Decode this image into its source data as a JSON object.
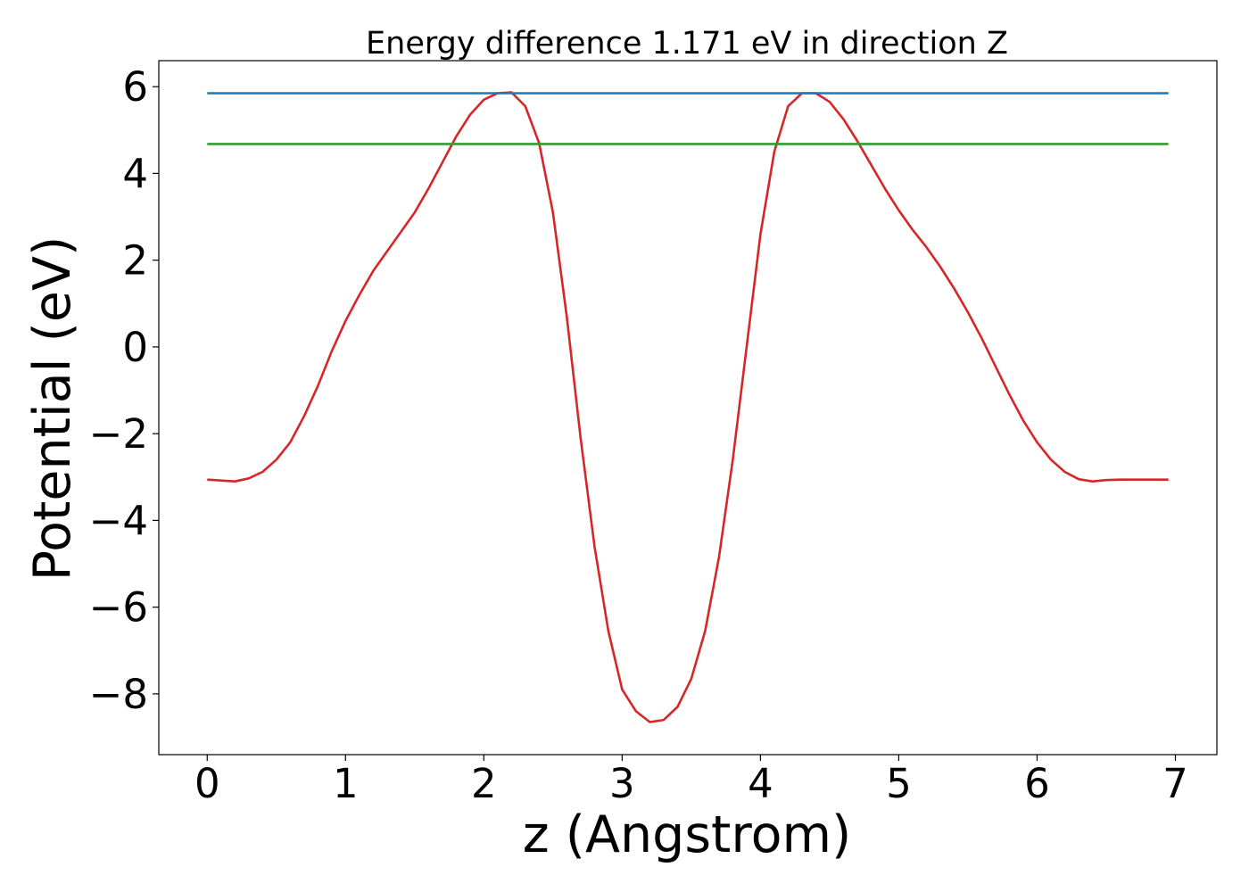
{
  "chart_data": {
    "type": "line",
    "title": "Energy difference 1.171 eV in direction Z",
    "xlabel": "z (Angstrom)",
    "ylabel": "Potential (eV)",
    "xlim": [
      -0.35,
      7.3
    ],
    "ylim": [
      -9.4,
      6.6
    ],
    "xticks": [
      0,
      1,
      2,
      3,
      4,
      5,
      6,
      7
    ],
    "xtick_labels": [
      "0",
      "1",
      "2",
      "3",
      "4",
      "5",
      "6",
      "7"
    ],
    "yticks": [
      -8,
      -6,
      -4,
      -2,
      0,
      2,
      4,
      6
    ],
    "ytick_labels": [
      "−8",
      "−6",
      "−4",
      "−2",
      "0",
      "2",
      "4",
      "6"
    ],
    "grid": false,
    "series": [
      {
        "color": "#d62728",
        "x": [
          0.0,
          0.1,
          0.2,
          0.3,
          0.4,
          0.5,
          0.6,
          0.7,
          0.8,
          0.9,
          1.0,
          1.1,
          1.2,
          1.3,
          1.4,
          1.5,
          1.6,
          1.7,
          1.8,
          1.9,
          2.0,
          2.1,
          2.2,
          2.3,
          2.4,
          2.5,
          2.6,
          2.7,
          2.8,
          2.9,
          3.0,
          3.1,
          3.2,
          3.3,
          3.4,
          3.5,
          3.6,
          3.7,
          3.8,
          3.9,
          4.0,
          4.1,
          4.2,
          4.3,
          4.4,
          4.5,
          4.6,
          4.7,
          4.8,
          4.9,
          5.0,
          5.1,
          5.2,
          5.3,
          5.4,
          5.5,
          5.6,
          5.7,
          5.8,
          5.9,
          6.0,
          6.1,
          6.2,
          6.3,
          6.4,
          6.5,
          6.6,
          6.7,
          6.8,
          6.95
        ],
        "y": [
          -3.06,
          -3.08,
          -3.1,
          -3.03,
          -2.88,
          -2.6,
          -2.2,
          -1.6,
          -0.9,
          -0.1,
          0.6,
          1.2,
          1.75,
          2.2,
          2.65,
          3.1,
          3.65,
          4.25,
          4.85,
          5.35,
          5.7,
          5.85,
          5.87,
          5.55,
          4.7,
          3.1,
          0.7,
          -2.1,
          -4.6,
          -6.55,
          -7.9,
          -8.4,
          -8.65,
          -8.6,
          -8.3,
          -7.65,
          -6.55,
          -4.85,
          -2.6,
          0.0,
          2.6,
          4.5,
          5.55,
          5.85,
          5.85,
          5.65,
          5.25,
          4.75,
          4.2,
          3.65,
          3.15,
          2.7,
          2.3,
          1.85,
          1.35,
          0.8,
          0.2,
          -0.45,
          -1.1,
          -1.7,
          -2.2,
          -2.6,
          -2.88,
          -3.05,
          -3.1,
          -3.07,
          -3.06,
          -3.06,
          -3.06,
          -3.06
        ]
      },
      {
        "color": "#1f77b4",
        "x": [
          0.0,
          6.95
        ],
        "y": [
          5.85,
          5.85
        ]
      },
      {
        "color": "#2ca02c",
        "x": [
          0.0,
          6.95
        ],
        "y": [
          4.68,
          4.68
        ]
      }
    ]
  }
}
